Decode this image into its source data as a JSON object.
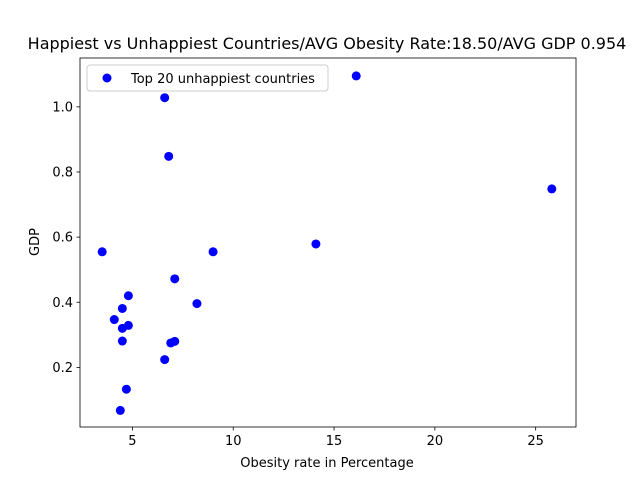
{
  "chart_data": {
    "type": "scatter",
    "title": "Happiest vs Unhappiest Countries/AVG Obesity Rate:18.50/AVG GDP 0.954",
    "xlabel": "Obesity rate in Percentage",
    "ylabel": "GDP",
    "xlim": [
      2.4,
      27.0
    ],
    "ylim": [
      0.017,
      1.15
    ],
    "xticks": [
      5,
      10,
      15,
      20,
      25
    ],
    "yticks": [
      0.2,
      0.4,
      0.6,
      0.8,
      1.0
    ],
    "xtick_labels": [
      "5",
      "10",
      "15",
      "20",
      "25"
    ],
    "ytick_labels": [
      "0.2",
      "0.4",
      "0.6",
      "0.8",
      "1.0"
    ],
    "grid": false,
    "legend_position": "top-left",
    "series": [
      {
        "name": "Top 20 unhappiest countries",
        "color": "#0000ff",
        "points": [
          {
            "x": 3.5,
            "y": 0.555
          },
          {
            "x": 4.1,
            "y": 0.347
          },
          {
            "x": 4.4,
            "y": 0.068
          },
          {
            "x": 4.5,
            "y": 0.381
          },
          {
            "x": 4.5,
            "y": 0.32
          },
          {
            "x": 4.5,
            "y": 0.281
          },
          {
            "x": 4.7,
            "y": 0.133
          },
          {
            "x": 4.8,
            "y": 0.42
          },
          {
            "x": 4.8,
            "y": 0.329
          },
          {
            "x": 6.6,
            "y": 1.028
          },
          {
            "x": 6.6,
            "y": 0.224
          },
          {
            "x": 6.8,
            "y": 0.848
          },
          {
            "x": 6.9,
            "y": 0.275
          },
          {
            "x": 7.1,
            "y": 0.28
          },
          {
            "x": 7.1,
            "y": 0.472
          },
          {
            "x": 8.2,
            "y": 0.396
          },
          {
            "x": 9.0,
            "y": 0.555
          },
          {
            "x": 14.1,
            "y": 0.579
          },
          {
            "x": 16.1,
            "y": 1.095
          },
          {
            "x": 25.8,
            "y": 0.748
          }
        ]
      }
    ]
  }
}
